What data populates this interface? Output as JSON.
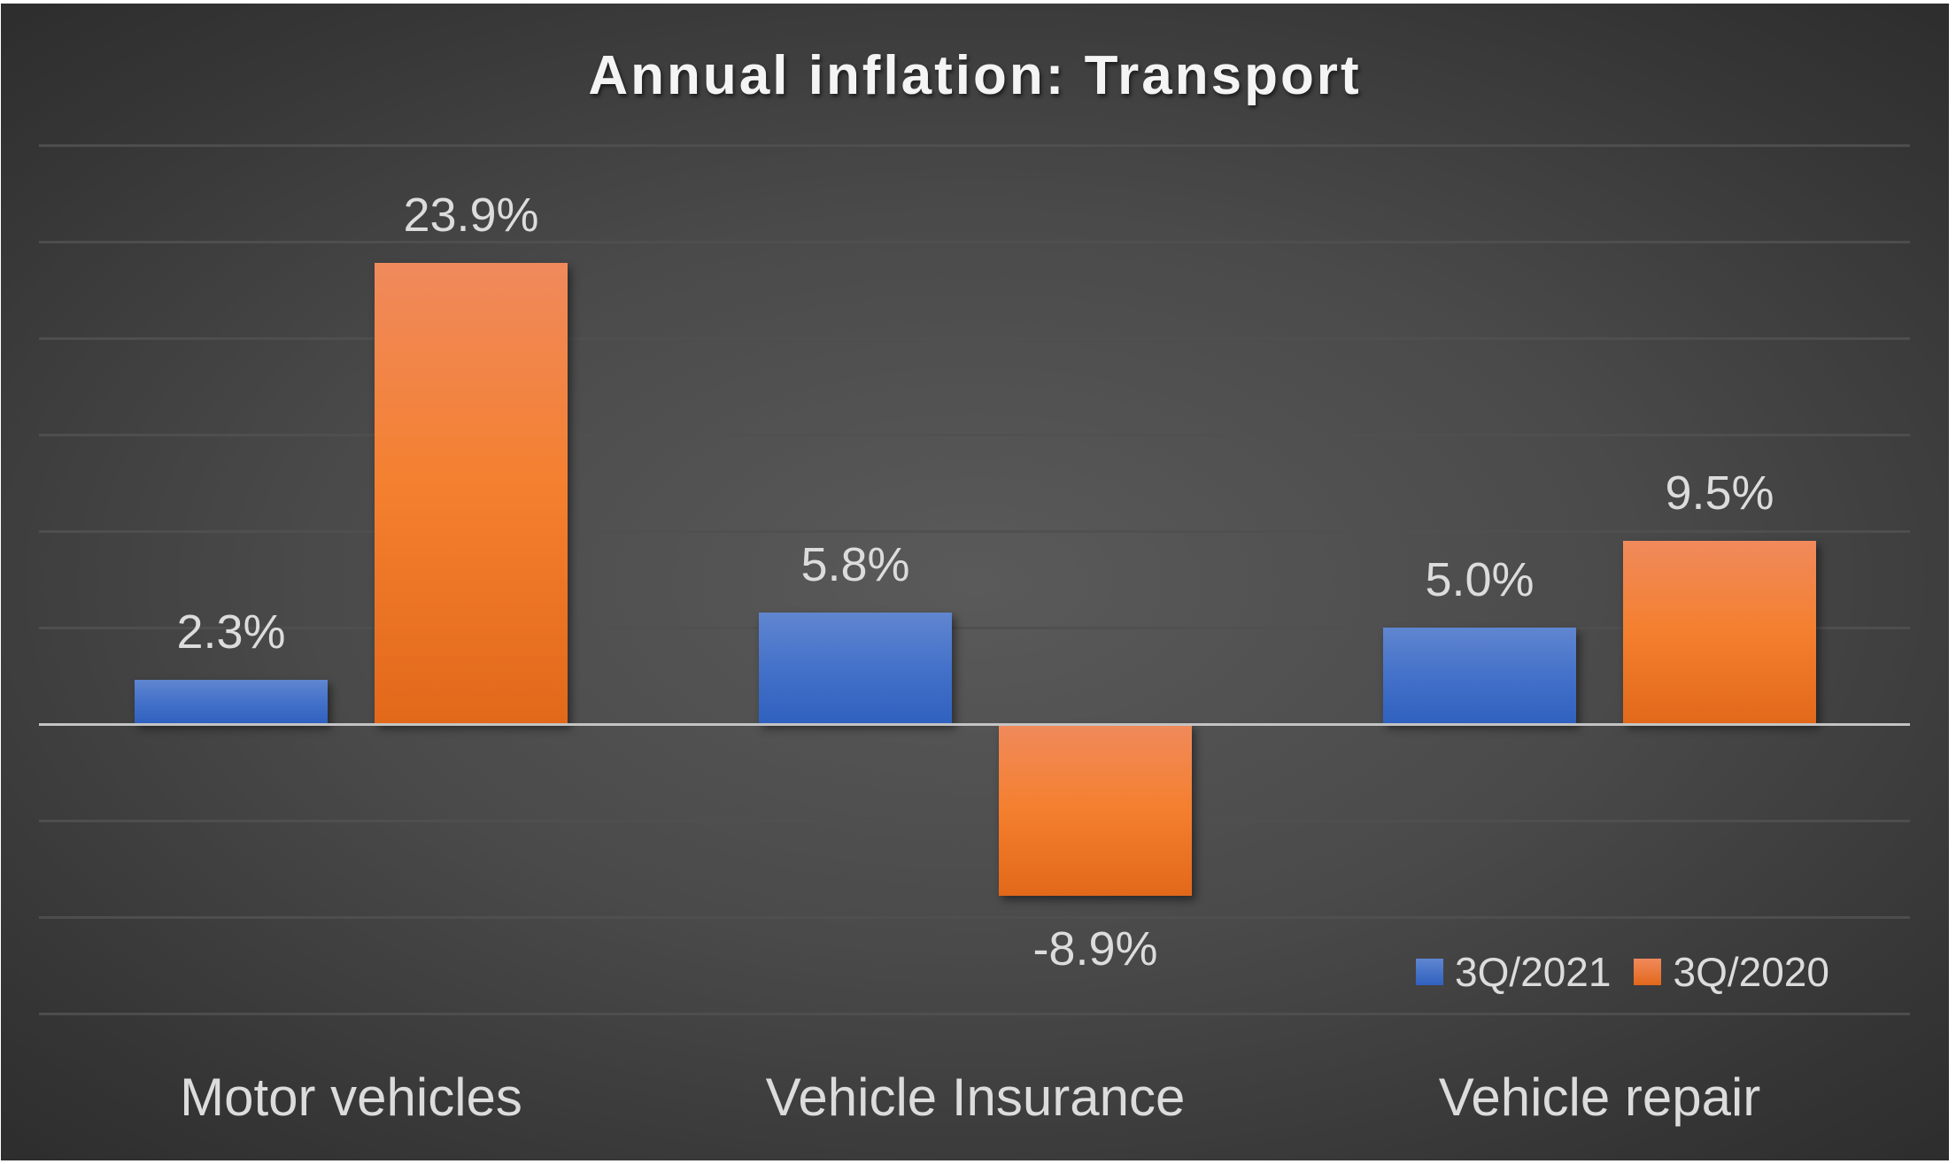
{
  "chart_data": {
    "type": "bar",
    "title": "Annual inflation: Transport",
    "categories": [
      "Motor vehicles",
      "Vehicle Insurance",
      "Vehicle repair"
    ],
    "series": [
      {
        "name": "3Q/2021",
        "color": "#4472C4",
        "values": [
          2.3,
          5.8,
          5.0
        ],
        "labels": [
          "2.3%",
          "5.8%",
          "5.0%"
        ]
      },
      {
        "name": "3Q/2020",
        "color": "#ED7D31",
        "values": [
          23.9,
          -8.9,
          9.5
        ],
        "labels": [
          "23.9%",
          "-8.9%",
          "9.5%"
        ]
      }
    ],
    "xlabel": "",
    "ylabel": "",
    "ylim": [
      -15,
      30
    ],
    "gridline_step": 5,
    "grid": true,
    "y_axis_labels_visible": false,
    "data_labels": true,
    "legend_position": "bottom-right (inside plot)",
    "value_format": "percent"
  },
  "title": "Annual inflation: Transport",
  "legend": {
    "items": [
      {
        "label": "3Q/2021",
        "color": "#4472C4"
      },
      {
        "label": "3Q/2020",
        "color": "#ED7D31"
      }
    ]
  },
  "colors": {
    "background": "#4a4a4a",
    "text": "#dcdcdc",
    "gridline": "#505050",
    "zero_axis": "#c4c4c4"
  }
}
